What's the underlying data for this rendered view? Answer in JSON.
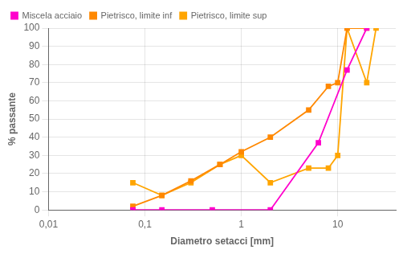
{
  "chart_data": {
    "type": "line",
    "xlabel": "Diametro setacci [mm]",
    "ylabel": "% passante",
    "log": "x",
    "xlim": [
      0.01,
      40
    ],
    "ylim": [
      0,
      100
    ],
    "xticks": [
      {
        "value": 0.01,
        "label": "0,01"
      },
      {
        "value": 0.1,
        "label": "0,1"
      },
      1,
      10
    ],
    "yticks": [
      0,
      10,
      20,
      30,
      40,
      50,
      60,
      70,
      80,
      90,
      100
    ],
    "grid": true,
    "legend": "upper left",
    "marker": "square",
    "series": [
      {
        "name": "Miscela acciaio",
        "color": "#FF00CC",
        "x": [
          0.075,
          0.15,
          0.5,
          2.0,
          6.3,
          12.5,
          20.0
        ],
        "values": [
          0,
          0,
          0,
          0,
          37,
          77,
          100
        ]
      },
      {
        "name": "Pietrisco, limite inf",
        "color": "#FF8800",
        "x": [
          0.075,
          0.15,
          0.3,
          0.6,
          1.0,
          2.0,
          5.0,
          8.0,
          10.0,
          12.5,
          20.0
        ],
        "values": [
          2,
          8,
          16,
          25,
          32,
          40,
          55,
          68,
          70,
          100,
          100
        ]
      },
      {
        "name": "Pietrisco, limite sup",
        "color": "#FFA500",
        "x": [
          0.075,
          0.15,
          0.3,
          0.6,
          1.0,
          2.0,
          5.0,
          8.0,
          10.0,
          12.5,
          20.0,
          25.0
        ],
        "values": [
          15,
          8,
          15,
          25,
          30,
          15,
          23,
          23,
          30,
          100,
          70,
          100
        ]
      }
    ]
  }
}
